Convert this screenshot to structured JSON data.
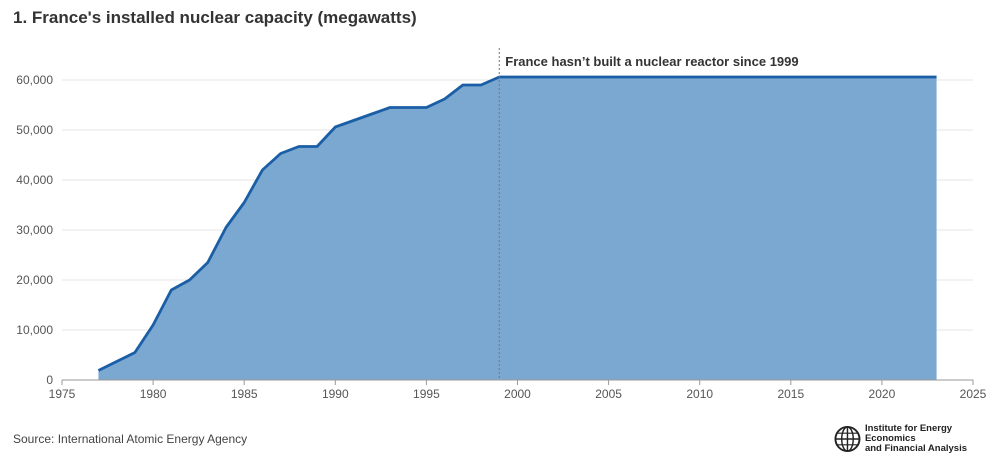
{
  "title": "1. France's installed nuclear capacity (megawatts)",
  "source": "Source: International Atomic Energy Agency",
  "logo": {
    "line1": "Institute for Energy Economics",
    "line2": "and Financial Analysis",
    "icon": "globe-icon"
  },
  "colors": {
    "line": "#1a5ea6",
    "fill": "#7ba8d0",
    "grid": "#e6e6e6",
    "marker": "#777777"
  },
  "chart_data": {
    "type": "area",
    "title": "1. France's installed nuclear capacity (megawatts)",
    "xlabel": "",
    "ylabel": "",
    "xlim": [
      1975,
      2025
    ],
    "ylim": [
      0,
      65000
    ],
    "x_ticks": [
      1975,
      1980,
      1985,
      1990,
      1995,
      2000,
      2005,
      2010,
      2015,
      2020,
      2025
    ],
    "y_ticks": [
      0,
      10000,
      20000,
      30000,
      40000,
      50000,
      60000
    ],
    "y_tick_labels": [
      "0",
      "10,000",
      "20,000",
      "30,000",
      "40,000",
      "50,000",
      "60,000"
    ],
    "grid": "horizontal",
    "series": [
      {
        "x": [
          1977,
          1978,
          1979,
          1980,
          1981,
          1982,
          1983,
          1984,
          1985,
          1986,
          1987,
          1988,
          1989,
          1990,
          1991,
          1992,
          1993,
          1994,
          1995,
          1996,
          1997,
          1998,
          1999,
          2000,
          2023
        ],
        "y": [
          1900,
          3700,
          5500,
          11000,
          18000,
          20000,
          23500,
          30500,
          35500,
          42000,
          45300,
          46700,
          46700,
          50600,
          51900,
          53200,
          54500,
          54500,
          54500,
          56200,
          59000,
          59000,
          60600,
          60600,
          60600
        ]
      }
    ],
    "annotations": [
      {
        "x": 1999,
        "text": "France hasn’t built a nuclear reactor since 1999"
      }
    ]
  }
}
